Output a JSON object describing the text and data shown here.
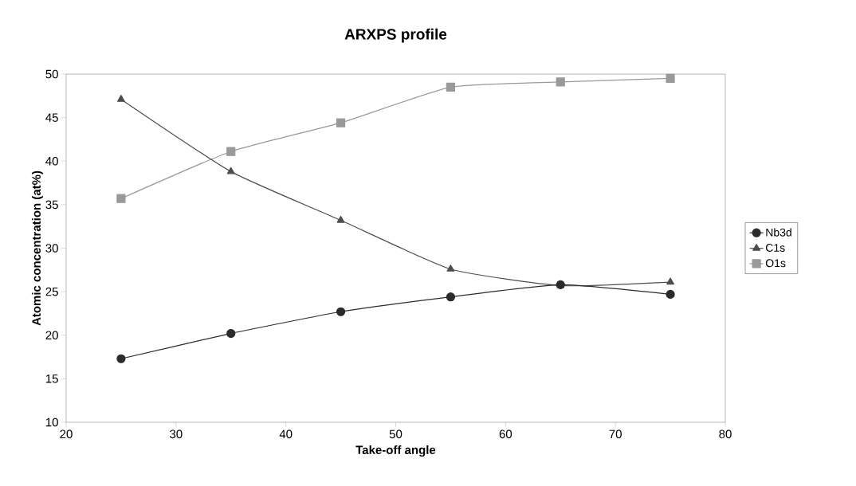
{
  "chart_data": {
    "type": "line",
    "title": "ARXPS profile",
    "xlabel": "Take-off angle",
    "ylabel": "Atomic concentration (at%)",
    "x": [
      25,
      35,
      45,
      55,
      65,
      75
    ],
    "series": [
      {
        "name": "Nb3d",
        "color": "#2b2b2b",
        "marker": "circle",
        "values": [
          17.3,
          20.2,
          22.7,
          24.4,
          25.8,
          24.7
        ]
      },
      {
        "name": "C1s",
        "color": "#4d4d4d",
        "marker": "triangle",
        "values": [
          47.1,
          38.8,
          33.2,
          27.6,
          25.7,
          26.1
        ]
      },
      {
        "name": "O1s",
        "color": "#999999",
        "marker": "square",
        "values": [
          35.7,
          41.1,
          44.4,
          48.5,
          49.1,
          49.5
        ]
      }
    ],
    "xlim": [
      20,
      80
    ],
    "xticks": [
      20,
      30,
      40,
      50,
      60,
      70,
      80
    ],
    "ylim": [
      10,
      50
    ],
    "yticks": [
      10,
      15,
      20,
      25,
      30,
      35,
      40,
      45,
      50
    ],
    "grid": false,
    "legend": "right"
  }
}
